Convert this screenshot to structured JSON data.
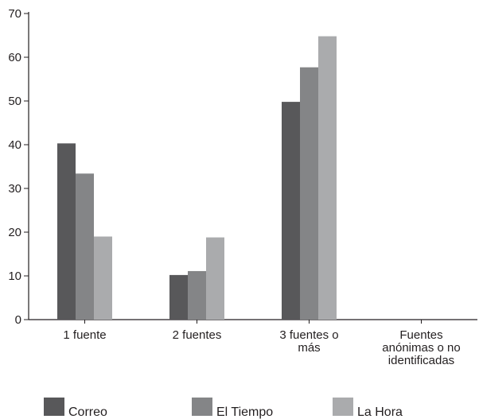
{
  "chart_data": {
    "type": "bar",
    "title": "",
    "xlabel": "",
    "ylabel": "",
    "ylim": [
      0,
      70
    ],
    "yticks": [
      0,
      10,
      20,
      30,
      40,
      50,
      60,
      70
    ],
    "grid": false,
    "legend_position": "bottom",
    "categories": [
      [
        "1 fuente"
      ],
      [
        "2 fuentes"
      ],
      [
        "3 fuentes o",
        "más"
      ],
      [
        "Fuentes",
        "anónimas o no",
        "identificadas"
      ]
    ],
    "series": [
      {
        "name": "Correo",
        "color": "#58585a",
        "values": [
          40.3,
          10.2,
          49.8,
          0
        ]
      },
      {
        "name": "El Tiempo",
        "color": "#848587",
        "values": [
          33.4,
          11.1,
          57.7,
          0
        ]
      },
      {
        "name": "La Hora",
        "color": "#aaabad",
        "values": [
          19.0,
          18.8,
          64.8,
          0
        ]
      }
    ]
  }
}
